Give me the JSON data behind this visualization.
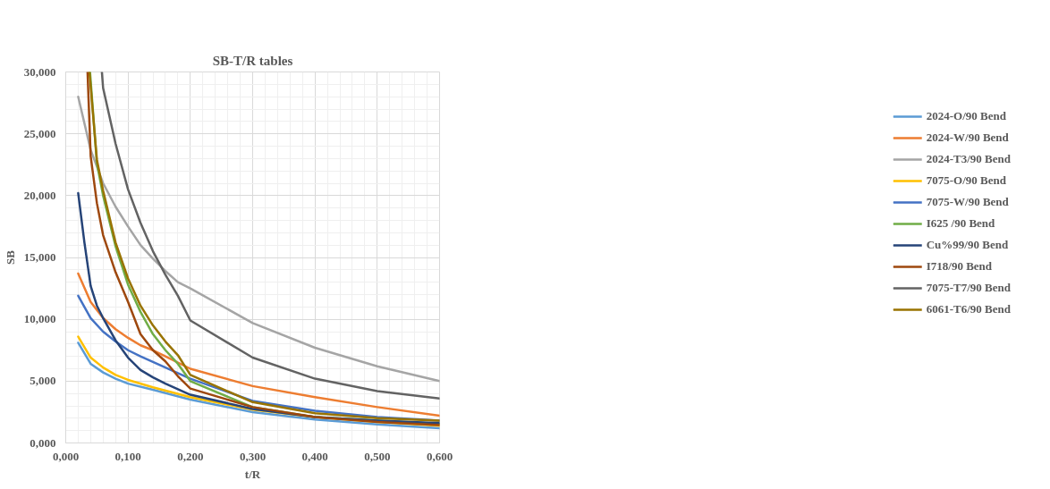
{
  "chart_data": {
    "type": "line",
    "title": "SB-T/R tables",
    "xlabel": "t/R",
    "ylabel": "SB",
    "xlim": [
      0,
      0.6
    ],
    "ylim": [
      0,
      30
    ],
    "xticks": [
      {
        "value": 0,
        "label": "0,000"
      },
      {
        "value": 0.1,
        "label": "0,100"
      },
      {
        "value": 0.2,
        "label": "0,200"
      },
      {
        "value": 0.3,
        "label": "0,300"
      },
      {
        "value": 0.4,
        "label": "0,400"
      },
      {
        "value": 0.5,
        "label": "0,500"
      },
      {
        "value": 0.6,
        "label": "0,600"
      }
    ],
    "yticks": [
      {
        "value": 0,
        "label": "0,000"
      },
      {
        "value": 5,
        "label": "5,000"
      },
      {
        "value": 10,
        "label": "10,000"
      },
      {
        "value": 15,
        "label": "15,000"
      },
      {
        "value": 20,
        "label": "20,000"
      },
      {
        "value": 25,
        "label": "25,000"
      },
      {
        "value": 30,
        "label": "30,000"
      }
    ],
    "grid": true,
    "legend": "right",
    "marker": "none",
    "line_style": "solid",
    "series": [
      {
        "name": "2024-O/90 Bend",
        "color": "#5b9bd5",
        "x": [
          0.02,
          0.04,
          0.06,
          0.08,
          0.1,
          0.14,
          0.2,
          0.3,
          0.4,
          0.5,
          0.6
        ],
        "values": [
          8.1,
          6.4,
          5.7,
          5.2,
          4.8,
          4.3,
          3.5,
          2.5,
          1.9,
          1.5,
          1.2
        ]
      },
      {
        "name": "2024-W/90 Bend",
        "color": "#ed7d31",
        "x": [
          0.02,
          0.04,
          0.06,
          0.08,
          0.1,
          0.12,
          0.14,
          0.16,
          0.2,
          0.3,
          0.4,
          0.5,
          0.6
        ],
        "values": [
          13.7,
          11.4,
          10.1,
          9.2,
          8.5,
          7.9,
          7.5,
          7.0,
          6.0,
          4.6,
          3.7,
          2.9,
          2.2
        ]
      },
      {
        "name": "2024-T3/90 Bend",
        "color": "#a5a5a5",
        "x": [
          0.02,
          0.04,
          0.06,
          0.08,
          0.1,
          0.12,
          0.14,
          0.16,
          0.18,
          0.2,
          0.3,
          0.4,
          0.5,
          0.6
        ],
        "values": [
          28.0,
          23.7,
          21.0,
          19.1,
          17.5,
          16.0,
          14.9,
          13.9,
          13.0,
          12.5,
          9.7,
          7.7,
          6.2,
          5.0
        ]
      },
      {
        "name": "7075-O/90 Bend",
        "color": "#ffc000",
        "x": [
          0.02,
          0.04,
          0.06,
          0.08,
          0.1,
          0.14,
          0.2,
          0.3,
          0.4,
          0.5,
          0.6
        ],
        "values": [
          8.6,
          6.9,
          6.1,
          5.5,
          5.1,
          4.5,
          3.7,
          2.7,
          2.1,
          1.7,
          1.4
        ]
      },
      {
        "name": "7075-W/90 Bend",
        "color": "#4472c4",
        "x": [
          0.02,
          0.04,
          0.06,
          0.08,
          0.1,
          0.12,
          0.16,
          0.2,
          0.3,
          0.4,
          0.5,
          0.6
        ],
        "values": [
          11.9,
          10.1,
          9.0,
          8.2,
          7.5,
          7.0,
          6.1,
          5.2,
          3.4,
          2.6,
          2.1,
          1.8
        ]
      },
      {
        "name": "I625 /90 Bend",
        "color": "#70ad47",
        "x": [
          0.039,
          0.05,
          0.06,
          0.08,
          0.1,
          0.12,
          0.14,
          0.16,
          0.18,
          0.2,
          0.3,
          0.4,
          0.5,
          0.6
        ],
        "values": [
          30,
          22.6,
          20.0,
          15.9,
          12.8,
          10.6,
          8.8,
          7.5,
          6.4,
          5.0,
          2.9,
          2.1,
          1.8,
          1.55
        ]
      },
      {
        "name": "Cu%99/90 Bend",
        "color": "#264478",
        "x": [
          0.02,
          0.03,
          0.04,
          0.05,
          0.06,
          0.08,
          0.1,
          0.12,
          0.14,
          0.16,
          0.2,
          0.3,
          0.4,
          0.5,
          0.6
        ],
        "values": [
          20.2,
          16.2,
          12.7,
          11.1,
          10.1,
          8.3,
          6.9,
          5.9,
          5.3,
          4.8,
          3.9,
          2.75,
          2.1,
          1.8,
          1.6
        ]
      },
      {
        "name": "I718/90 Bend",
        "color": "#9e480e",
        "x": [
          0.035,
          0.04,
          0.05,
          0.06,
          0.08,
          0.1,
          0.12,
          0.14,
          0.16,
          0.18,
          0.2,
          0.3,
          0.4,
          0.5,
          0.6
        ],
        "values": [
          30,
          23.2,
          19.4,
          16.8,
          13.8,
          11.4,
          8.8,
          7.5,
          6.6,
          5.4,
          4.4,
          2.9,
          2.1,
          1.7,
          1.45
        ]
      },
      {
        "name": "7075-T7/90 Bend",
        "color": "#636363",
        "x": [
          0.058,
          0.06,
          0.08,
          0.1,
          0.12,
          0.14,
          0.16,
          0.18,
          0.2,
          0.3,
          0.4,
          0.5,
          0.6
        ],
        "values": [
          30,
          28.7,
          24.2,
          20.5,
          17.8,
          15.5,
          13.6,
          11.9,
          9.9,
          6.9,
          5.2,
          4.2,
          3.6
        ]
      },
      {
        "name": "6061-T6/90 Bend",
        "color": "#997300",
        "x": [
          0.038,
          0.05,
          0.06,
          0.08,
          0.1,
          0.12,
          0.14,
          0.16,
          0.18,
          0.2,
          0.3,
          0.4,
          0.5,
          0.6
        ],
        "values": [
          30,
          22.9,
          20.4,
          16.2,
          13.3,
          11.1,
          9.5,
          8.2,
          7.1,
          5.5,
          3.3,
          2.4,
          2.0,
          1.8
        ]
      }
    ]
  }
}
